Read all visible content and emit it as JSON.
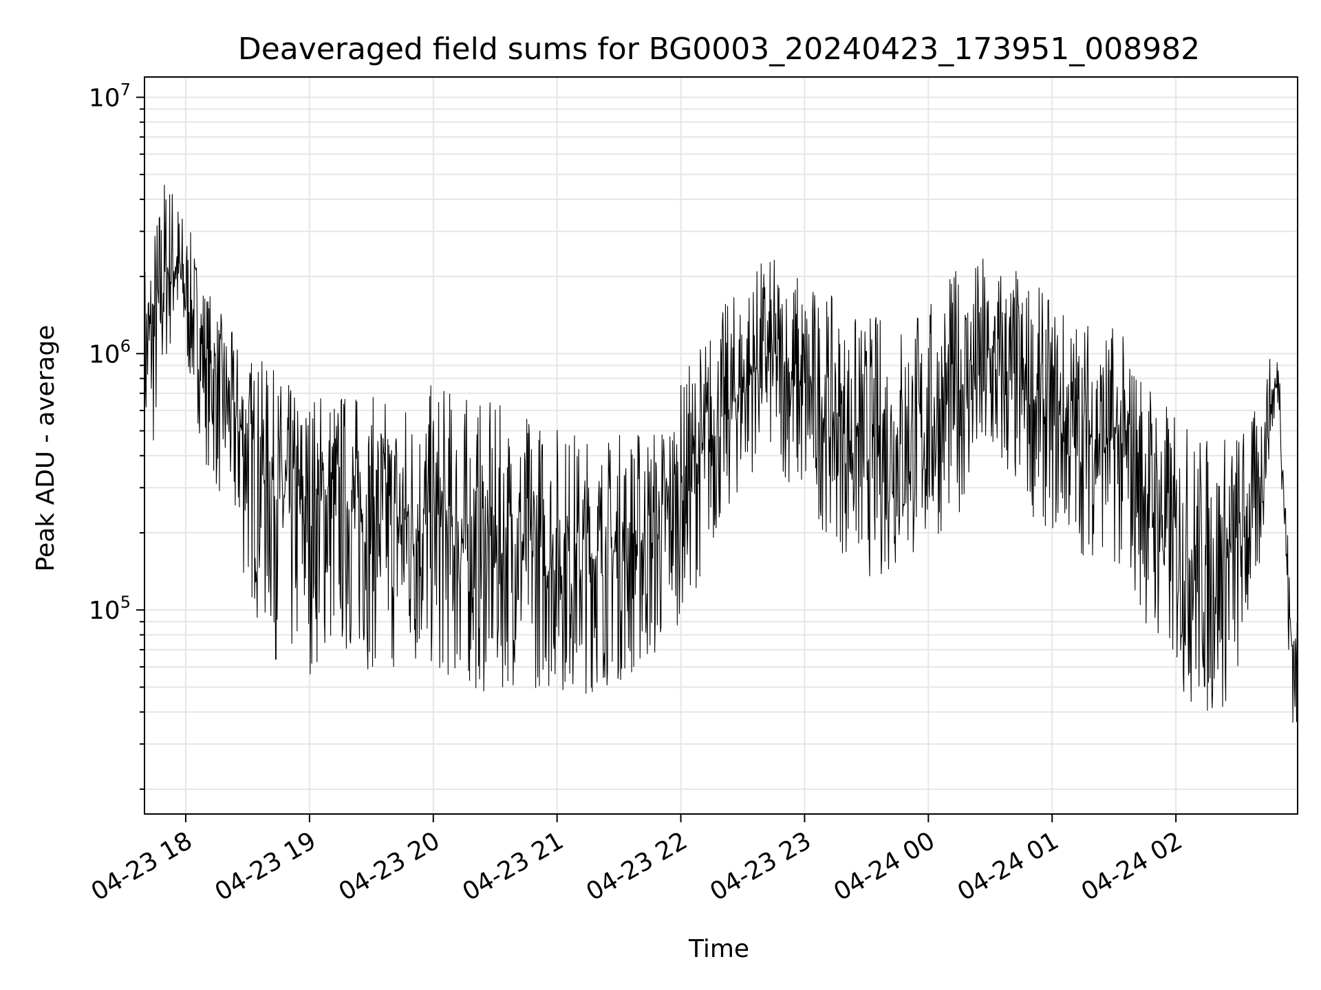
{
  "chart_data": {
    "type": "line",
    "title": "Deaveraged field sums for BG0003_20240423_173951_008982",
    "xlabel": "Time",
    "ylabel": "Peak ADU - average",
    "yscale": "log",
    "ylim": [
      16000,
      12000000
    ],
    "xlim": [
      "2024-04-23 17:40",
      "2024-04-24 02:59"
    ],
    "x_tick_labels": [
      "04-23 18",
      "04-23 19",
      "04-23 20",
      "04-23 21",
      "04-23 22",
      "04-23 23",
      "04-24 00",
      "04-24 01",
      "04-24 02"
    ],
    "x_tick_times": [
      "2024-04-23 18:00",
      "2024-04-23 19:00",
      "2024-04-23 20:00",
      "2024-04-23 21:00",
      "2024-04-23 22:00",
      "2024-04-23 23:00",
      "2024-04-24 00:00",
      "2024-04-24 01:00",
      "2024-04-24 02:00"
    ],
    "y_ticks": [
      {
        "base": "10",
        "exp": "5",
        "value": 100000
      },
      {
        "base": "10",
        "exp": "6",
        "value": 1000000
      },
      {
        "base": "10",
        "exp": "7",
        "value": 10000000
      }
    ],
    "grid": true,
    "line_color": "#000000",
    "series": [
      {
        "times": [
          "2024-04-23 17:40",
          "2024-04-23 17:45",
          "2024-04-23 17:50",
          "2024-04-23 17:55",
          "2024-04-23 18:00",
          "2024-04-23 18:05",
          "2024-04-23 18:10",
          "2024-04-23 18:20",
          "2024-04-23 18:30",
          "2024-04-23 18:40",
          "2024-04-23 18:50",
          "2024-04-23 19:00",
          "2024-04-23 19:10",
          "2024-04-23 19:20",
          "2024-04-23 19:30",
          "2024-04-23 19:40",
          "2024-04-23 19:50",
          "2024-04-23 20:00",
          "2024-04-23 20:10",
          "2024-04-23 20:20",
          "2024-04-23 20:30",
          "2024-04-23 20:40",
          "2024-04-23 20:50",
          "2024-04-23 21:00",
          "2024-04-23 21:10",
          "2024-04-23 21:20",
          "2024-04-23 21:30",
          "2024-04-23 21:40",
          "2024-04-23 21:50",
          "2024-04-23 22:00",
          "2024-04-23 22:10",
          "2024-04-23 22:20",
          "2024-04-23 22:30",
          "2024-04-23 22:40",
          "2024-04-23 22:50",
          "2024-04-23 23:00",
          "2024-04-23 23:10",
          "2024-04-23 23:20",
          "2024-04-23 23:30",
          "2024-04-23 23:40",
          "2024-04-23 23:50",
          "2024-04-24 00:00",
          "2024-04-24 00:10",
          "2024-04-24 00:20",
          "2024-04-24 00:30",
          "2024-04-24 00:40",
          "2024-04-24 00:50",
          "2024-04-24 01:00",
          "2024-04-24 01:10",
          "2024-04-24 01:20",
          "2024-04-24 01:30",
          "2024-04-24 01:40",
          "2024-04-24 01:50",
          "2024-04-24 02:00",
          "2024-04-24 02:10",
          "2024-04-24 02:20",
          "2024-04-24 02:30",
          "2024-04-24 02:40",
          "2024-04-24 02:45",
          "2024-04-24 02:50",
          "2024-04-24 02:55",
          "2024-04-24 02:59"
        ],
        "median": [
          1000000,
          1200000,
          2000000,
          2300000,
          1700000,
          1300000,
          950000,
          650000,
          450000,
          350000,
          260000,
          250000,
          260000,
          250000,
          230000,
          220000,
          210000,
          220000,
          190000,
          170000,
          160000,
          180000,
          170000,
          160000,
          150000,
          160000,
          170000,
          180000,
          200000,
          280000,
          400000,
          550000,
          750000,
          1000000,
          850000,
          700000,
          600000,
          480000,
          420000,
          420000,
          440000,
          500000,
          650000,
          800000,
          850000,
          780000,
          650000,
          550000,
          500000,
          480000,
          450000,
          350000,
          250000,
          180000,
          150000,
          140000,
          180000,
          280000,
          600000,
          800000,
          90000,
          50000
        ],
        "spread_up": [
          2.5,
          3,
          2.8,
          2,
          2,
          2,
          2,
          2,
          2.3,
          2.6,
          3,
          3,
          3,
          3,
          3,
          3.2,
          3.5,
          3.5,
          4,
          4,
          4,
          3.5,
          3.5,
          3.5,
          3.5,
          3,
          3,
          3,
          2.8,
          2.8,
          3,
          2.8,
          2.6,
          2.4,
          2.8,
          3,
          3,
          3,
          3.5,
          3.5,
          3.5,
          3.2,
          3.2,
          3,
          3,
          3,
          3,
          3,
          3,
          3,
          3,
          3,
          3.2,
          3.2,
          3.5,
          3.5,
          3,
          2.2,
          1.6,
          1.3,
          1.8,
          1.8
        ],
        "spread_down": [
          3,
          3,
          2.4,
          2,
          2,
          2.3,
          2.6,
          3,
          4,
          5,
          5,
          4.5,
          4,
          4,
          4,
          4,
          4,
          4,
          3.8,
          3.6,
          3.5,
          3.5,
          3.5,
          3.3,
          3.3,
          3.3,
          3.3,
          3.3,
          3.2,
          3,
          3,
          2.6,
          2.6,
          2.4,
          2.6,
          3,
          3,
          3,
          3.2,
          3.2,
          3,
          3,
          3,
          3,
          2.8,
          2.8,
          2.8,
          2.8,
          3,
          3,
          3,
          3.2,
          3.5,
          3.5,
          4,
          4,
          3.5,
          2.5,
          1.6,
          1.3,
          2,
          2
        ]
      }
    ]
  }
}
